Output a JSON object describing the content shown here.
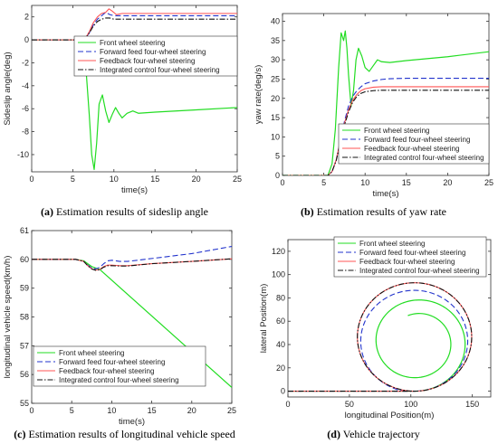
{
  "figure": {
    "legend_labels": [
      "Front wheel steering",
      "Forward feed four-wheel steering",
      "Feedback four-wheel steering",
      "Integrated control four-wheel steering"
    ]
  },
  "captions": [
    {
      "letter": "(a)",
      "text": " Estimation results of sideslip angle"
    },
    {
      "letter": "(b)",
      "text": " Estimation results of yaw rate"
    },
    {
      "letter": "(c)",
      "text": " Estimation results of longitudinal vehicle speed"
    },
    {
      "letter": "(d)",
      "text": " Vehicle trajectory"
    }
  ],
  "chart_data": [
    {
      "type": "line",
      "xlabel": "time(s)",
      "ylabel": "Sideslip angle(deg)",
      "xlim": [
        0,
        25
      ],
      "ylim": [
        -11.5,
        3
      ],
      "xticks": [
        0,
        5,
        10,
        15,
        20,
        25
      ],
      "yticks": [
        -10,
        -8,
        -6,
        -4,
        -2,
        0,
        2
      ],
      "legend_position": "top-right",
      "series": [
        {
          "name": "Front wheel steering",
          "color": "#22dd22",
          "dash": "solid",
          "x": [
            0,
            5.5,
            6.2,
            6.6,
            7.0,
            7.3,
            7.6,
            7.9,
            8.2,
            8.6,
            9.0,
            9.4,
            9.8,
            10.2,
            10.6,
            11.0,
            11.6,
            12.3,
            13.0,
            15,
            20,
            25
          ],
          "y": [
            0,
            0,
            -0.6,
            -2.5,
            -6.5,
            -10.0,
            -11.3,
            -9.0,
            -5.6,
            -4.8,
            -6.2,
            -7.2,
            -6.5,
            -5.9,
            -6.4,
            -6.8,
            -6.4,
            -6.2,
            -6.4,
            -6.3,
            -6.1,
            -5.9
          ]
        },
        {
          "name": "Forward feed four-wheel steering",
          "color": "#2233cc",
          "dash": "6,3",
          "x": [
            0,
            5.5,
            6.5,
            7.0,
            7.5,
            8.0,
            8.5,
            9.0,
            9.5,
            10.0,
            11.0,
            15,
            20,
            25
          ],
          "y": [
            0,
            0,
            0.1,
            0.6,
            1.3,
            1.8,
            2.1,
            2.4,
            2.2,
            2.1,
            2.1,
            2.1,
            2.1,
            2.1
          ]
        },
        {
          "name": "Feedback four-wheel steering",
          "color": "#ff5555",
          "dash": "solid",
          "x": [
            0,
            5.5,
            6.5,
            7.0,
            7.5,
            8.0,
            8.5,
            9.0,
            9.4,
            9.8,
            10.3,
            11.0,
            12,
            15,
            20,
            25
          ],
          "y": [
            0,
            0,
            0.1,
            0.7,
            1.5,
            2.0,
            2.3,
            2.4,
            2.7,
            2.5,
            2.2,
            2.3,
            2.3,
            2.3,
            2.3,
            2.3
          ]
        },
        {
          "name": "Integrated control four-wheel steering",
          "color": "#111111",
          "dash": "6,2,1.5,2",
          "x": [
            0,
            5.5,
            6.5,
            7.0,
            7.5,
            8.0,
            8.5,
            9.0,
            9.5,
            10.0,
            11.0,
            15,
            20,
            25
          ],
          "y": [
            0,
            0,
            0.1,
            0.6,
            1.2,
            1.6,
            1.8,
            1.9,
            1.9,
            1.8,
            1.8,
            1.8,
            1.8,
            1.8
          ]
        }
      ]
    },
    {
      "type": "line",
      "xlabel": "time(s)",
      "ylabel": "yaw rate(deg/s)",
      "xlim": [
        0,
        25
      ],
      "ylim": [
        0,
        42
      ],
      "xticks": [
        0,
        5,
        10,
        15,
        20,
        25
      ],
      "yticks": [
        0,
        5,
        10,
        15,
        20,
        25,
        30,
        35,
        40
      ],
      "legend_position": "lower-right",
      "series": [
        {
          "name": "Front wheel steering",
          "color": "#22dd22",
          "dash": "solid",
          "x": [
            0,
            5.5,
            6.0,
            6.4,
            6.8,
            7.1,
            7.4,
            7.6,
            7.8,
            8.0,
            8.3,
            8.6,
            8.9,
            9.2,
            9.6,
            10.0,
            10.5,
            11.0,
            11.5,
            12.0,
            13,
            15,
            20,
            25
          ],
          "y": [
            0,
            0,
            3,
            12,
            28,
            37,
            35,
            37.5,
            33,
            26,
            18,
            22,
            30,
            33,
            31,
            28,
            27,
            28.5,
            30,
            29.5,
            29.3,
            29.8,
            30.8,
            32.1
          ]
        },
        {
          "name": "Forward feed four-wheel steering",
          "color": "#2233cc",
          "dash": "6,3",
          "x": [
            0,
            5.5,
            6.0,
            6.5,
            7.0,
            7.5,
            8.0,
            8.5,
            9.0,
            9.5,
            10.0,
            11,
            12,
            13,
            15,
            20,
            25
          ],
          "y": [
            0,
            0,
            1,
            4,
            9,
            14,
            18,
            20.5,
            22,
            23,
            23.8,
            24.5,
            24.9,
            25.1,
            25.2,
            25.2,
            25.2
          ]
        },
        {
          "name": "Feedback four-wheel steering",
          "color": "#ff5555",
          "dash": "solid",
          "x": [
            0,
            5.5,
            6.0,
            6.5,
            7.0,
            7.5,
            8.0,
            8.5,
            9.0,
            9.5,
            10.0,
            11,
            12,
            15,
            20,
            25
          ],
          "y": [
            0,
            0,
            1,
            4,
            9,
            13.5,
            17,
            19.5,
            21,
            22,
            22.5,
            22.9,
            23,
            23,
            23,
            23
          ]
        },
        {
          "name": "Integrated control four-wheel steering",
          "color": "#111111",
          "dash": "6,2,1.5,2",
          "x": [
            0,
            5.5,
            6.0,
            6.5,
            7.0,
            7.5,
            8.0,
            8.5,
            9.0,
            9.5,
            10.0,
            11,
            12,
            15,
            20,
            25
          ],
          "y": [
            0,
            0,
            1,
            3.8,
            8.6,
            13,
            16.5,
            19,
            20.5,
            21.3,
            21.7,
            22,
            22.1,
            22.1,
            22.1,
            22.1
          ]
        }
      ]
    },
    {
      "type": "line",
      "xlabel": "time(s)",
      "ylabel": "longitudinal vehicle speed(km/h)",
      "xlim": [
        0,
        25
      ],
      "ylim": [
        55,
        61
      ],
      "xticks": [
        0,
        5,
        10,
        15,
        20,
        25
      ],
      "yticks": [
        55,
        56,
        57,
        58,
        59,
        60,
        61
      ],
      "legend_position": "lower-left",
      "series": [
        {
          "name": "Front wheel steering",
          "color": "#22dd22",
          "dash": "solid",
          "x": [
            0,
            5.5,
            6.5,
            7.0,
            7.5,
            8.0,
            8.5,
            25
          ],
          "y": [
            60,
            60,
            59.95,
            59.85,
            59.75,
            59.7,
            59.65,
            55.55
          ]
        },
        {
          "name": "Forward feed four-wheel steering",
          "color": "#2233cc",
          "dash": "6,3",
          "x": [
            0,
            5.5,
            6.5,
            7.0,
            7.5,
            8.0,
            8.5,
            9.0,
            9.5,
            10.0,
            11.0,
            12,
            15,
            20,
            25
          ],
          "y": [
            60,
            60,
            59.93,
            59.8,
            59.7,
            59.67,
            59.72,
            59.85,
            59.95,
            59.97,
            59.93,
            59.93,
            60.03,
            60.2,
            60.45
          ]
        },
        {
          "name": "Feedback four-wheel steering",
          "color": "#ff5555",
          "dash": "solid",
          "x": [
            0,
            5.5,
            6.5,
            7.0,
            7.5,
            8.0,
            8.5,
            9.0,
            9.5,
            10.0,
            11.0,
            12,
            15,
            20,
            25
          ],
          "y": [
            60,
            60,
            59.93,
            59.78,
            59.67,
            59.63,
            59.65,
            59.75,
            59.8,
            59.8,
            59.78,
            59.78,
            59.85,
            59.93,
            60.02
          ]
        },
        {
          "name": "Integrated control four-wheel steering",
          "color": "#111111",
          "dash": "6,2,1.5,2",
          "x": [
            0,
            5.5,
            6.5,
            7.0,
            7.5,
            8.0,
            8.5,
            9.0,
            9.5,
            10.0,
            11.0,
            12,
            15,
            20,
            25
          ],
          "y": [
            60,
            60,
            59.93,
            59.78,
            59.67,
            59.62,
            59.64,
            59.73,
            59.78,
            59.78,
            59.77,
            59.77,
            59.85,
            59.93,
            60.02
          ]
        }
      ]
    },
    {
      "type": "line",
      "xlabel": "longitudinal Position(m)",
      "ylabel": "lateral Position(m)",
      "xlim": [
        0,
        165
      ],
      "ylim": [
        -5,
        130
      ],
      "xticks": [
        0,
        50,
        100,
        150
      ],
      "yticks": [
        0,
        20,
        40,
        60,
        80,
        100,
        120
      ],
      "legend_position": "top-right",
      "series": [
        {
          "name": "Front wheel steering",
          "color": "#22dd22",
          "dash": "solid",
          "path": {
            "start": [
              0,
              0
            ],
            "straight_end_x": 98,
            "kind": "spiral",
            "center": [
              105,
              42
            ],
            "r_start": 42,
            "r_end": 24,
            "turns": 1.55
          }
        },
        {
          "name": "Forward feed four-wheel steering",
          "color": "#2233cc",
          "dash": "6,3",
          "path": {
            "start": [
              0,
              0
            ],
            "straight_end_x": 98,
            "kind": "loop",
            "center": [
              103,
              43
            ],
            "r_start": 43,
            "r_end": 44,
            "turns": 0.97
          }
        },
        {
          "name": "Feedback four-wheel steering",
          "color": "#ff5555",
          "dash": "solid",
          "path": {
            "start": [
              0,
              0
            ],
            "straight_end_x": 98,
            "kind": "loop",
            "center": [
              103,
              46.5
            ],
            "r_start": 46.5,
            "r_end": 46.5,
            "turns": 1.0
          }
        },
        {
          "name": "Integrated control four-wheel steering",
          "color": "#111111",
          "dash": "6,2,1.5,2",
          "path": {
            "start": [
              0,
              0
            ],
            "straight_end_x": 98,
            "kind": "loop",
            "center": [
              103,
              46.5
            ],
            "r_start": 46.5,
            "r_end": 46.5,
            "turns": 1.0
          }
        }
      ]
    }
  ]
}
